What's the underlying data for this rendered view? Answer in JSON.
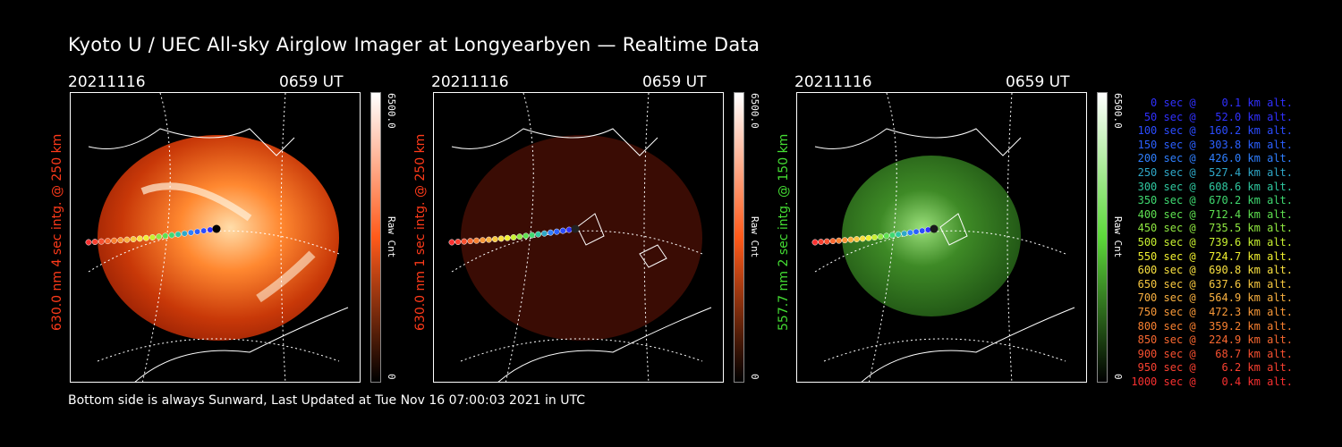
{
  "title": "Kyoto U / UEC All-sky Airglow Imager at Longyearbyen — Realtime Data",
  "panels": [
    {
      "date": "20211116",
      "time": "0659 UT",
      "ylabel": "630.0 nm 4 sec intg. @ 250 km",
      "cbar_max": "6500.0",
      "cbar_min": "0",
      "cbar_unit": "Raw Cnt",
      "color": "#ff3a1a"
    },
    {
      "date": "20211116",
      "time": "0659 UT",
      "ylabel": "630.0 nm 1 sec intg. @ 250 km",
      "cbar_max": "6500.0",
      "cbar_min": "0",
      "cbar_unit": "Raw Cnt",
      "color": "#ff3a1a"
    },
    {
      "date": "20211116",
      "time": "0659 UT",
      "ylabel": "557.7 nm 2 sec intg. @ 150 km",
      "cbar_max": "6500.0",
      "cbar_min": "0",
      "cbar_unit": "Raw Cnt",
      "color": "#44dd33"
    }
  ],
  "legend": [
    {
      "text": "   0 sec @    0.1 km alt.",
      "color": "#3030ff"
    },
    {
      "text": "  50 sec @   52.0 km alt.",
      "color": "#3030ff"
    },
    {
      "text": " 100 sec @  160.2 km alt.",
      "color": "#2b4cff"
    },
    {
      "text": " 150 sec @  303.8 km alt.",
      "color": "#2b60ff"
    },
    {
      "text": " 200 sec @  426.0 km alt.",
      "color": "#2f7fff"
    },
    {
      "text": " 250 sec @  527.4 km alt.",
      "color": "#2fa8c8"
    },
    {
      "text": " 300 sec @  608.6 km alt.",
      "color": "#2fc8a0"
    },
    {
      "text": " 350 sec @  670.2 km alt.",
      "color": "#3fd870"
    },
    {
      "text": " 400 sec @  712.4 km alt.",
      "color": "#5ee050"
    },
    {
      "text": " 450 sec @  735.5 km alt.",
      "color": "#8fe840"
    },
    {
      "text": " 500 sec @  739.6 km alt.",
      "color": "#c8f030"
    },
    {
      "text": " 550 sec @  724.7 km alt.",
      "color": "#f0f030"
    },
    {
      "text": " 600 sec @  690.8 km alt.",
      "color": "#f8e040"
    },
    {
      "text": " 650 sec @  637.6 km alt.",
      "color": "#f8c840"
    },
    {
      "text": " 700 sec @  564.9 km alt.",
      "color": "#f8b040"
    },
    {
      "text": " 750 sec @  472.3 km alt.",
      "color": "#f89838"
    },
    {
      "text": " 800 sec @  359.2 km alt.",
      "color": "#f88030"
    },
    {
      "text": " 850 sec @  224.9 km alt.",
      "color": "#f86830"
    },
    {
      "text": " 900 sec @   68.7 km alt.",
      "color": "#f85030"
    },
    {
      "text": " 950 sec @    6.2 km alt.",
      "color": "#f84030"
    },
    {
      "text": "1000 sec @    0.4 km alt.",
      "color": "#f83030"
    }
  ],
  "footer": "Bottom side is always Sunward, Last Updated at Tue Nov 16 07:00:03 2021 in UTC"
}
